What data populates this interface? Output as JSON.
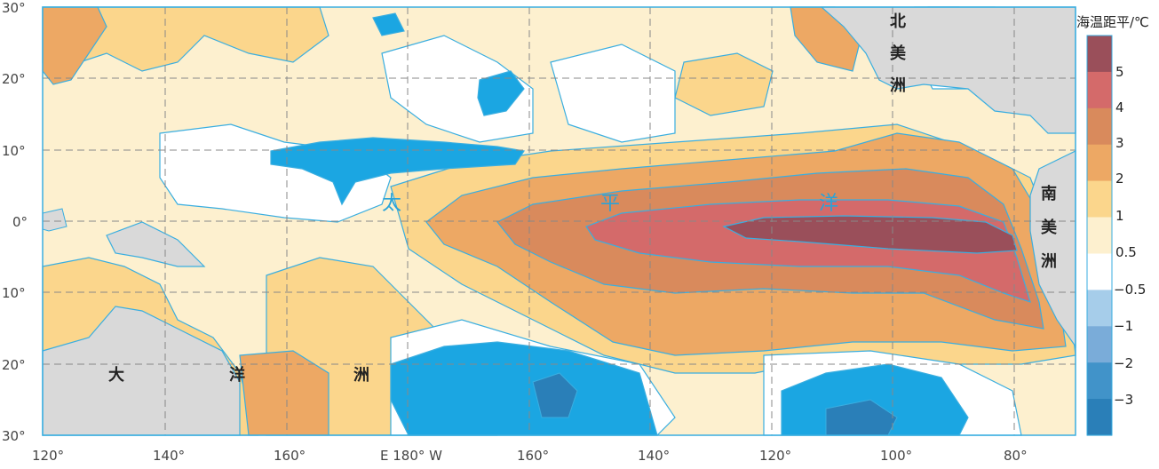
{
  "x_axis_labels": [
    "120°",
    "140°",
    "160°",
    "E 180° W",
    "160°",
    "140°",
    "120°",
    "100°",
    "80°"
  ],
  "y_axis_labels": [
    "30°",
    "20°",
    "10°",
    "0°",
    "10°",
    "20°",
    "30°"
  ],
  "continent_labels": {
    "north_america": [
      "北",
      "美",
      "洲"
    ],
    "south_america": [
      "南",
      "美",
      "洲"
    ],
    "oceania": [
      "大",
      "洋",
      "洲"
    ]
  },
  "ocean_label": [
    "太",
    "平",
    "洋"
  ],
  "legend": {
    "title": "海温距平/℃",
    "ticks": [
      "5",
      "4",
      "3",
      "2",
      "1",
      "0.5",
      "−0.5",
      "−1",
      "−2",
      "−3"
    ],
    "colors": [
      "#9a4f5a",
      "#d46a6a",
      "#d98a5c",
      "#eda864",
      "#fbd68c",
      "#fdf0cf",
      "#ffffff",
      "#a6cdea",
      "#7aacd9",
      "#4193c9",
      "#2a7fb8"
    ]
  },
  "colors": {
    "land": "#d9d9d9",
    "contour": "#3aaee0",
    "grid": "#888888",
    "cold": "#1ba6e2",
    "cold_deep": "#2a7fb8"
  }
}
